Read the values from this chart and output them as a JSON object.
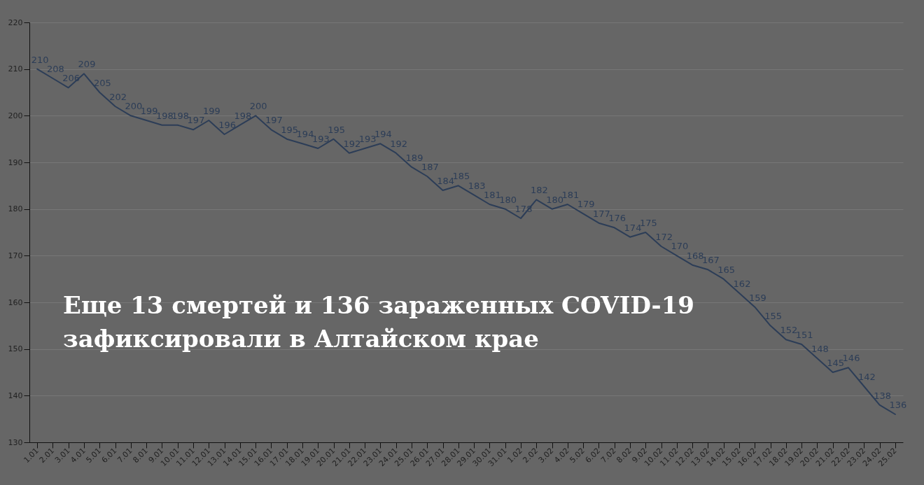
{
  "chart_data": {
    "type": "line",
    "title": "Еще 13 смертей и 136 зараженных COVID-19 зафиксировали в Алтайском крае",
    "categories": [
      "1.01",
      "2.01",
      "3.01",
      "4.01",
      "5.01",
      "6.01",
      "7.01",
      "8.01",
      "9.01",
      "10.01",
      "11.01",
      "12.01",
      "13.01",
      "14.01",
      "15.01",
      "16.01",
      "17.01",
      "18.01",
      "19.01",
      "20.01",
      "21.01",
      "22.01",
      "23.01",
      "24.01",
      "25.01",
      "26.01",
      "27.01",
      "28.01",
      "29.01",
      "30.01",
      "31.01",
      "1.02",
      "2.02",
      "3.02",
      "4.02",
      "5.02",
      "6.02",
      "7.02",
      "8.02",
      "9.02",
      "10.02",
      "11.02",
      "12.02",
      "13.02",
      "14.02",
      "15.02",
      "16.02",
      "17.02",
      "18.02",
      "19.02",
      "20.02",
      "21.02",
      "22.02",
      "23.02",
      "24.02",
      "25.02"
    ],
    "series": [
      {
        "color": "#2c3d57",
        "values": [
          210,
          208,
          206,
          209,
          205,
          202,
          200,
          199,
          198,
          198,
          197,
          199,
          196,
          198,
          200,
          197,
          195,
          194,
          193,
          195,
          192,
          193,
          194,
          192,
          189,
          187,
          184,
          185,
          183,
          181,
          180,
          178,
          182,
          180,
          181,
          179,
          177,
          176,
          174,
          175,
          172,
          170,
          168,
          167,
          165,
          162,
          159,
          155,
          152,
          151,
          148,
          145,
          146,
          142,
          138,
          136
        ]
      }
    ],
    "ylim": [
      130,
      220
    ],
    "yticks": [
      130,
      140,
      150,
      160,
      170,
      180,
      190,
      200,
      210,
      220
    ],
    "grid": "y",
    "data_labels": true,
    "marker": "none",
    "line_style": "solid"
  }
}
